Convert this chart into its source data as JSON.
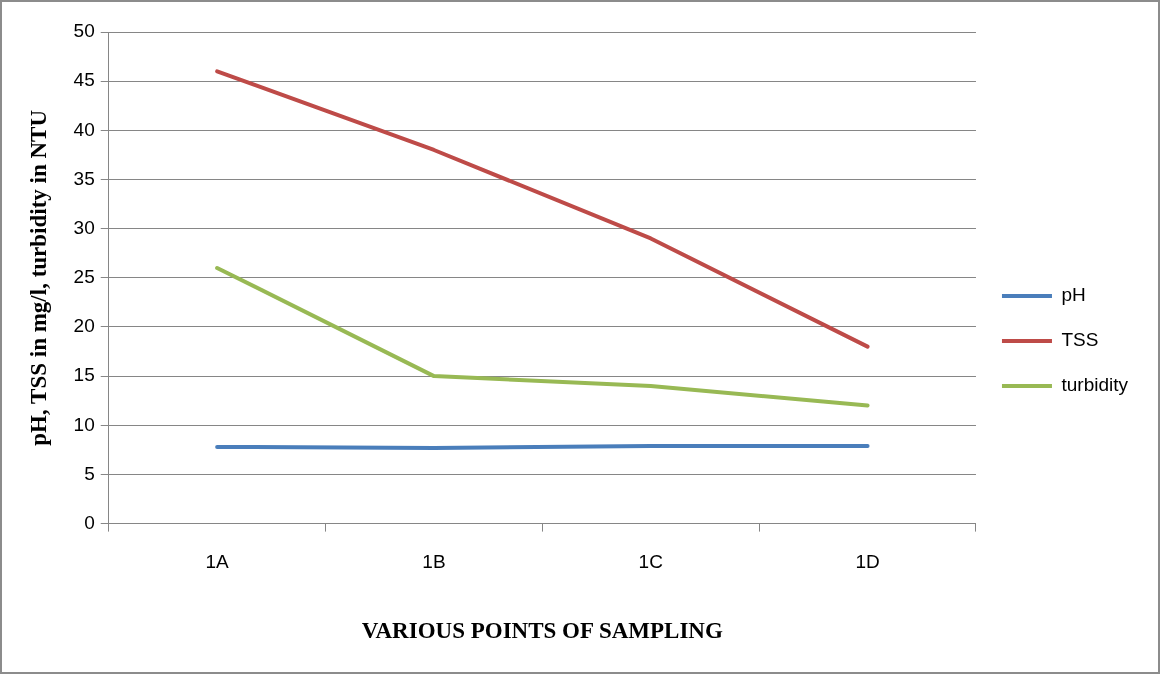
{
  "chart_data": {
    "type": "line",
    "xlabel": "VARIOUS POINTS OF SAMPLING",
    "ylabel": "pH, TSS in mg/l, turbidity in NTU",
    "categories": [
      "1A",
      "1B",
      "1C",
      "1D"
    ],
    "series": [
      {
        "name": "pH",
        "color": "#4a7ebb",
        "values": [
          7.8,
          7.7,
          7.9,
          7.9
        ]
      },
      {
        "name": "TSS",
        "color": "#be4b48",
        "values": [
          46,
          38,
          29,
          18
        ]
      },
      {
        "name": "turbidity",
        "color": "#98b954",
        "values": [
          26,
          15,
          14,
          12
        ]
      }
    ],
    "ylim": [
      0,
      50
    ],
    "yticks": [
      0,
      5,
      10,
      15,
      20,
      25,
      30,
      35,
      40,
      45,
      50
    ],
    "grid": "y",
    "legend": "right",
    "marker": "none",
    "line_style": "solid"
  }
}
